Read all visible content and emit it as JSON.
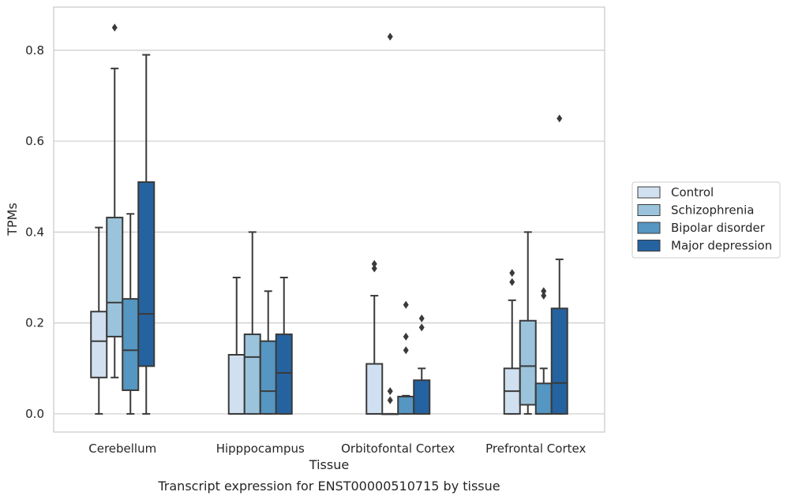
{
  "chart_data": {
    "type": "box",
    "title": "Transcript expression for ENST00000510715 by tissue",
    "xlabel": "Tissue",
    "ylabel": "TPMs",
    "ylim": [
      -0.04,
      0.895
    ],
    "yticks": [
      0.0,
      0.2,
      0.4,
      0.6,
      0.8
    ],
    "ytick_labels": [
      "0.0",
      "0.2",
      "0.4",
      "0.6",
      "0.8"
    ],
    "grid": "horizontal",
    "legend_position": "right",
    "categories": [
      "Cerebellum",
      "Hipppocampus",
      "Orbitofontal Cortex",
      "Prefrontal Cortex"
    ],
    "series": [
      {
        "name": "Control",
        "color": "#d1e0f0",
        "boxes": [
          {
            "whislo": 0.0,
            "q1": 0.08,
            "med": 0.16,
            "q3": 0.225,
            "whishi": 0.41,
            "fliers": []
          },
          {
            "whislo": 0.0,
            "q1": 0.0,
            "med": 0.0,
            "q3": 0.13,
            "whishi": 0.3,
            "fliers": []
          },
          {
            "whislo": 0.0,
            "q1": 0.0,
            "med": 0.0,
            "q3": 0.11,
            "whishi": 0.26,
            "fliers": [
              0.32,
              0.33
            ]
          },
          {
            "whislo": 0.0,
            "q1": 0.0,
            "med": 0.05,
            "q3": 0.1,
            "whishi": 0.25,
            "fliers": [
              0.29,
              0.31
            ]
          }
        ]
      },
      {
        "name": "Schizophrenia",
        "color": "#9bc4dc",
        "boxes": [
          {
            "whislo": 0.08,
            "q1": 0.17,
            "med": 0.245,
            "q3": 0.432,
            "whishi": 0.76,
            "fliers": [
              0.85
            ]
          },
          {
            "whislo": 0.0,
            "q1": 0.0,
            "med": 0.125,
            "q3": 0.175,
            "whishi": 0.4,
            "fliers": []
          },
          {
            "whislo": 0.0,
            "q1": 0.0,
            "med": 0.0,
            "q3": 0.0,
            "whishi": 0.0,
            "fliers": [
              0.03,
              0.05,
              0.83
            ]
          },
          {
            "whislo": 0.0,
            "q1": 0.02,
            "med": 0.105,
            "q3": 0.205,
            "whishi": 0.4,
            "fliers": []
          }
        ]
      },
      {
        "name": "Bipolar disorder",
        "color": "#5596c2",
        "boxes": [
          {
            "whislo": 0.0,
            "q1": 0.052,
            "med": 0.14,
            "q3": 0.253,
            "whishi": 0.44,
            "fliers": []
          },
          {
            "whislo": 0.0,
            "q1": 0.0,
            "med": 0.05,
            "q3": 0.16,
            "whishi": 0.27,
            "fliers": []
          },
          {
            "whislo": 0.0,
            "q1": 0.0,
            "med": 0.038,
            "q3": 0.038,
            "whishi": 0.04,
            "fliers": [
              0.14,
              0.17,
              0.24
            ]
          },
          {
            "whislo": 0.0,
            "q1": 0.0,
            "med": 0.0,
            "q3": 0.067,
            "whishi": 0.1,
            "fliers": [
              0.26,
              0.27
            ]
          }
        ]
      },
      {
        "name": "Major depression",
        "color": "#2563a0",
        "boxes": [
          {
            "whislo": 0.0,
            "q1": 0.105,
            "med": 0.22,
            "q3": 0.51,
            "whishi": 0.79,
            "fliers": []
          },
          {
            "whislo": 0.0,
            "q1": 0.0,
            "med": 0.09,
            "q3": 0.175,
            "whishi": 0.3,
            "fliers": []
          },
          {
            "whislo": 0.0,
            "q1": 0.0,
            "med": 0.0,
            "q3": 0.074,
            "whishi": 0.1,
            "fliers": [
              0.19,
              0.21
            ]
          },
          {
            "whislo": 0.0,
            "q1": 0.0,
            "med": 0.068,
            "q3": 0.232,
            "whishi": 0.34,
            "fliers": [
              0.65
            ]
          }
        ]
      }
    ]
  }
}
